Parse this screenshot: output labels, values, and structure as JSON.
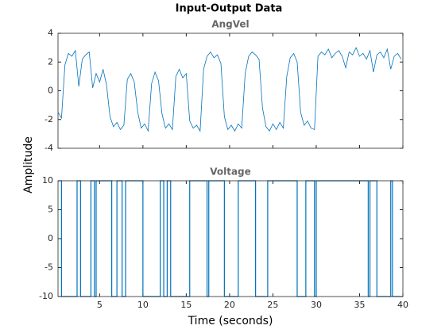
{
  "chart_data": {
    "type": "line",
    "title": "Input-Output Data",
    "xlabel": "Time (seconds)",
    "ylabel": "Amplitude",
    "xlim": [
      0.2,
      40
    ],
    "xticks": [
      5,
      10,
      15,
      20,
      25,
      30,
      35,
      40
    ],
    "grid": false,
    "subplots": [
      {
        "type": "line",
        "title": "AngVel",
        "ylim": [
          -4,
          4
        ],
        "yticks": [
          -4,
          -2,
          0,
          2,
          4
        ],
        "series": [
          {
            "color": "#0072bd",
            "x": [
              0.2,
              0.6,
              1.0,
              1.4,
              1.8,
              2.2,
              2.6,
              3.0,
              3.4,
              3.8,
              4.2,
              4.6,
              5.0,
              5.4,
              5.8,
              6.2,
              6.6,
              7.0,
              7.4,
              7.8,
              8.2,
              8.6,
              9.0,
              9.4,
              9.8,
              10.2,
              10.6,
              11.0,
              11.4,
              11.8,
              12.2,
              12.6,
              13.0,
              13.4,
              13.8,
              14.2,
              14.6,
              15.0,
              15.4,
              15.8,
              16.2,
              16.6,
              17.0,
              17.4,
              17.8,
              18.2,
              18.6,
              19.0,
              19.4,
              19.8,
              20.2,
              20.6,
              21.0,
              21.4,
              21.8,
              22.2,
              22.6,
              23.0,
              23.4,
              23.8,
              24.2,
              24.6,
              25.0,
              25.4,
              25.8,
              26.2,
              26.6,
              27.0,
              27.4,
              27.8,
              28.2,
              28.6,
              29.0,
              29.4,
              29.8,
              30.2,
              30.6,
              31.0,
              31.4,
              31.8,
              32.2,
              32.6,
              33.0,
              33.4,
              33.8,
              34.2,
              34.6,
              35.0,
              35.4,
              35.8,
              36.2,
              36.6,
              37.0,
              37.4,
              37.8,
              38.2,
              38.6,
              39.0,
              39.4,
              39.8
            ],
            "values": [
              -1.5,
              -1.9,
              1.8,
              2.6,
              2.4,
              2.8,
              0.3,
              2.2,
              2.5,
              2.7,
              0.2,
              1.2,
              0.6,
              1.5,
              0.4,
              -1.8,
              -2.5,
              -2.2,
              -2.7,
              -2.4,
              0.8,
              1.2,
              0.6,
              -1.5,
              -2.6,
              -2.3,
              -2.8,
              0.5,
              1.3,
              0.7,
              -1.6,
              -2.6,
              -2.3,
              -2.7,
              1.0,
              1.5,
              0.9,
              1.2,
              -2.1,
              -2.6,
              -2.4,
              -2.8,
              1.5,
              2.4,
              2.7,
              2.3,
              2.5,
              1.9,
              -1.8,
              -2.7,
              -2.4,
              -2.8,
              -2.3,
              -2.6,
              1.2,
              2.4,
              2.7,
              2.5,
              2.2,
              -1.2,
              -2.5,
              -2.8,
              -2.3,
              -2.7,
              -2.2,
              -2.6,
              1.0,
              2.3,
              2.6,
              2.0,
              -1.5,
              -2.4,
              -2.1,
              -2.6,
              -2.7,
              2.4,
              2.7,
              2.5,
              2.9,
              2.3,
              2.6,
              2.8,
              2.4,
              1.6,
              2.7,
              2.5,
              3.0,
              2.4,
              2.6,
              2.2,
              2.8,
              1.3,
              2.5,
              2.7,
              2.3,
              2.9,
              1.5,
              2.4,
              2.6,
              2.2
            ]
          }
        ]
      },
      {
        "type": "stairs",
        "title": "Voltage",
        "ylim": [
          -10,
          10
        ],
        "yticks": [
          -10,
          -5,
          0,
          5,
          10
        ],
        "series": [
          {
            "color": "#0072bd",
            "x": [
              0.2,
              0.6,
              2.4,
              2.8,
              4.0,
              4.4,
              4.6,
              6.4,
              7.0,
              7.6,
              8.0,
              10.0,
              12.0,
              12.4,
              12.8,
              13.2,
              15.4,
              17.4,
              17.6,
              19.4,
              21.0,
              23.0,
              24.4,
              27.8,
              28.8,
              29.8,
              30.0,
              36.0,
              36.2,
              37.0,
              38.6,
              38.8
            ],
            "values": [
              10,
              -10,
              10,
              -10,
              10,
              -10,
              10,
              -10,
              10,
              -10,
              10,
              -10,
              10,
              -10,
              10,
              -10,
              10,
              -10,
              10,
              -10,
              10,
              -10,
              10,
              -10,
              10,
              -10,
              10,
              -10,
              10,
              -10,
              10,
              -10
            ]
          }
        ]
      }
    ]
  }
}
